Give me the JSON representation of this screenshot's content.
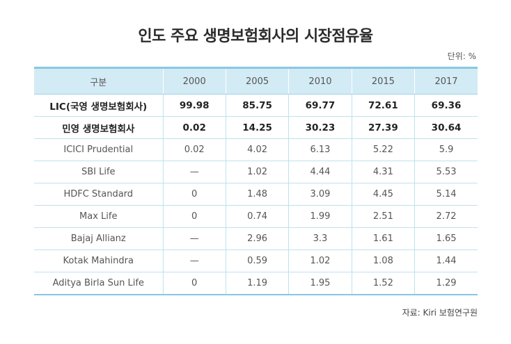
{
  "title": "인도 주요 생명보험회사의 시장점유율",
  "unit": "단위: %",
  "source": "자료: Kiri 보험연구원",
  "chart_data": {
    "type": "table",
    "title": "인도 주요 생명보험회사의 시장점유율",
    "columns": [
      "구분",
      "2000",
      "2005",
      "2010",
      "2015",
      "2017"
    ],
    "rows": [
      {
        "name": "LIC(국영 생명보험회사)",
        "values": [
          "99.98",
          "85.75",
          "69.77",
          "72.61",
          "69.36"
        ],
        "bold": true
      },
      {
        "name": "민영 생명보험회사",
        "values": [
          "0.02",
          "14.25",
          "30.23",
          "27.39",
          "30.64"
        ],
        "bold": true
      },
      {
        "name": "ICICI Prudential",
        "values": [
          "0.02",
          "4.02",
          "6.13",
          "5.22",
          "5.9"
        ],
        "bold": false
      },
      {
        "name": "SBI Life",
        "values": [
          "—",
          "1.02",
          "4.44",
          "4.31",
          "5.53"
        ],
        "bold": false
      },
      {
        "name": "HDFC Standard",
        "values": [
          "0",
          "1.48",
          "3.09",
          "4.45",
          "5.14"
        ],
        "bold": false
      },
      {
        "name": "Max Life",
        "values": [
          "0",
          "0.74",
          "1.99",
          "2.51",
          "2.72"
        ],
        "bold": false
      },
      {
        "name": "Bajaj Allianz",
        "values": [
          "—",
          "2.96",
          "3.3",
          "1.61",
          "1.65"
        ],
        "bold": false
      },
      {
        "name": "Kotak Mahindra",
        "values": [
          "—",
          "0.59",
          "1.02",
          "1.08",
          "1.44"
        ],
        "bold": false
      },
      {
        "name": "Aditya Birla Sun Life",
        "values": [
          "0",
          "1.19",
          "1.95",
          "1.52",
          "1.29"
        ],
        "bold": false
      }
    ],
    "colors": {
      "header_bg": "#d3ebf5",
      "border_accent": "#86c7e2"
    }
  }
}
